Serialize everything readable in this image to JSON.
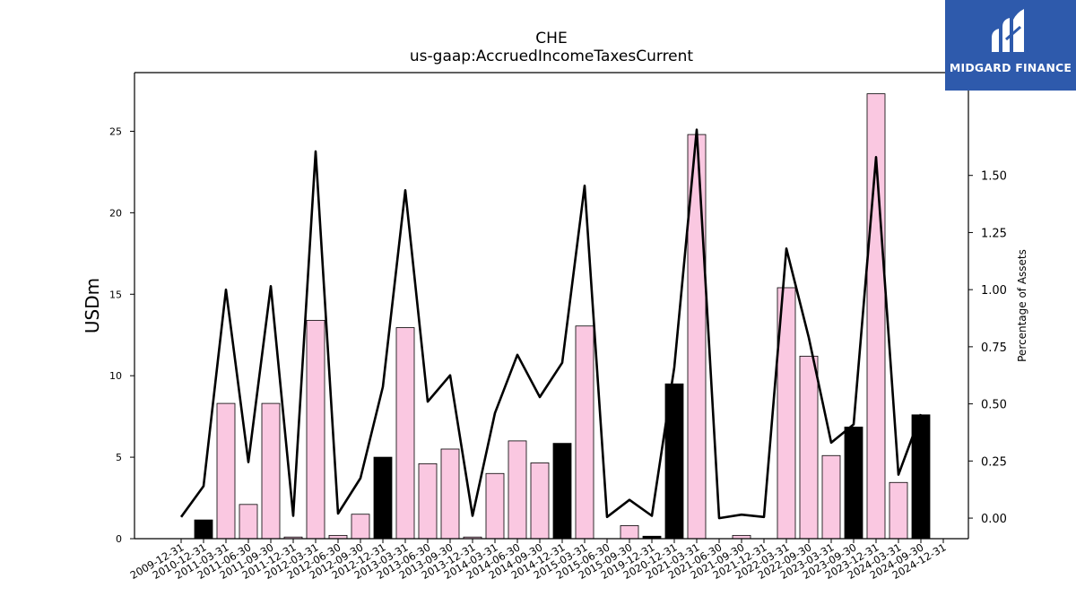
{
  "chart_data": {
    "type": "bar",
    "title": "CHE",
    "subtitle": "us-gaap:AccruedIncomeTaxesCurrent",
    "ylabel": "USDm",
    "y2label": "Percentage of Assets",
    "ylim": [
      0,
      28.6
    ],
    "y2lim": [
      -0.09,
      1.95
    ],
    "yticks": [
      0,
      5,
      10,
      15,
      20,
      25
    ],
    "y2ticks": [
      "0.00",
      "0.25",
      "0.50",
      "0.75",
      "1.00",
      "1.25",
      "1.50"
    ],
    "categories": [
      "2009-12-31",
      "2010-12-31",
      "2011-03-31",
      "2011-06-30",
      "2011-09-30",
      "2011-12-31",
      "2012-03-31",
      "2012-06-30",
      "2012-09-30",
      "2012-12-31",
      "2013-03-31",
      "2013-06-30",
      "2013-09-30",
      "2013-12-31",
      "2014-03-31",
      "2014-06-30",
      "2014-09-30",
      "2014-12-31",
      "2015-03-31",
      "2015-06-30",
      "2015-09-30",
      "2019-12-31",
      "2020-12-31",
      "2021-03-31",
      "2021-06-30",
      "2021-09-30",
      "2021-12-31",
      "2022-03-31",
      "2022-09-30",
      "2023-03-31",
      "2023-09-30",
      "2023-12-31",
      "2024-03-31",
      "2024-09-30",
      "2024-12-31"
    ],
    "series": [
      {
        "kind": "bar",
        "values": [
          0,
          1.15,
          8.3,
          2.1,
          8.3,
          0.1,
          13.4,
          0.2,
          1.5,
          5.0,
          12.95,
          4.6,
          5.5,
          0.1,
          4.0,
          6.0,
          4.65,
          5.85,
          13.05,
          0,
          0.8,
          0.15,
          9.5,
          24.8,
          0,
          0.2,
          0,
          15.4,
          11.2,
          5.1,
          6.85,
          27.3,
          3.45,
          7.6,
          0
        ],
        "colors": [
          "pink",
          "black",
          "pink",
          "pink",
          "pink",
          "pink",
          "pink",
          "pink",
          "pink",
          "black",
          "pink",
          "pink",
          "pink",
          "pink",
          "pink",
          "pink",
          "pink",
          "black",
          "pink",
          "pink",
          "pink",
          "black",
          "black",
          "pink",
          "pink",
          "pink",
          "pink",
          "pink",
          "pink",
          "pink",
          "black",
          "pink",
          "pink",
          "black",
          "black"
        ]
      },
      {
        "kind": "line",
        "axis": "right",
        "values": [
          0.005,
          0.14,
          1.0,
          0.245,
          1.015,
          0.01,
          1.605,
          0.02,
          0.175,
          0.575,
          1.435,
          0.51,
          0.625,
          0.01,
          0.46,
          0.715,
          0.53,
          0.68,
          1.455,
          0.005,
          0.08,
          0.01,
          0.66,
          1.7,
          0.0,
          0.015,
          0.005,
          1.18,
          0.79,
          0.33,
          0.41,
          1.58,
          0.19,
          0.455,
          null
        ]
      }
    ],
    "palette": {
      "pink": "#fac8e1",
      "black": "#000000",
      "line": "#000000"
    }
  },
  "logo": {
    "text": "MIDGARD FINANCE",
    "background": "#2e5aac"
  }
}
